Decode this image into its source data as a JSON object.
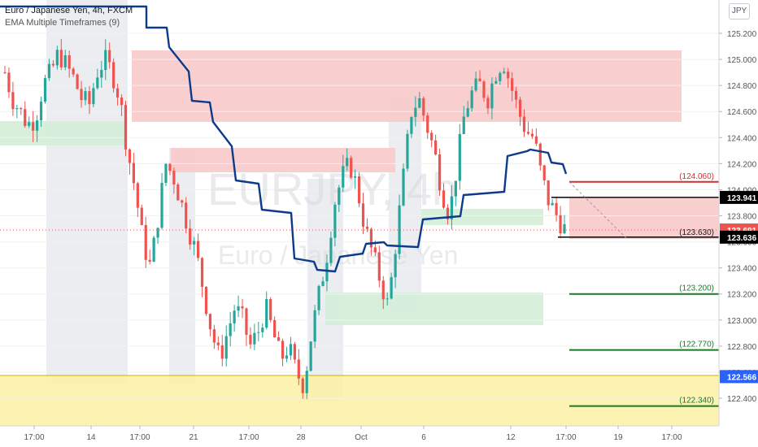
{
  "header": {
    "symbol_line": "Euro / Japanese Yen, 4h, FXCM",
    "indicator_line": "EMA Multiple Timeframes (9)",
    "currency_button": "JPY"
  },
  "watermark": {
    "symbol": "EURJPY, 4h",
    "name": "Euro / Japanese Yen"
  },
  "colors": {
    "up": "#26a69a",
    "down": "#ef5350",
    "ema": "#0d3b8c",
    "red_zone": "#f8c9c9",
    "green_zone": "#d4edd8",
    "gray_zone": "#e4e5ea",
    "yellow_zone": "#fcf1a8",
    "accent": "#2962ff",
    "target_red": "#d32f2f",
    "target_green": "#1b7a2a"
  },
  "chart_data": {
    "type": "candlestick",
    "ylim": [
      122.2,
      125.25
    ],
    "price_ticks": [
      "125.200",
      "125.000",
      "124.800",
      "124.600",
      "124.400",
      "124.200",
      "124.000",
      "123.800",
      "123.600",
      "123.400",
      "123.200",
      "123.000",
      "122.800",
      "122.600",
      "122.400"
    ],
    "time_ticks": [
      "17:00",
      "14",
      "17:00",
      "21",
      "17:00",
      "28",
      "Oct",
      "6",
      "12",
      "17:00",
      "19",
      "17:00"
    ],
    "price_badges": [
      {
        "label": "123.941",
        "price": 123.941,
        "style": "black"
      },
      {
        "label": "123.691",
        "price": 123.691,
        "style": "red"
      },
      {
        "label": "123.636",
        "price": 123.636,
        "style": "black"
      },
      {
        "label": "122.566",
        "price": 122.566,
        "style": "blue"
      }
    ],
    "level_labels": [
      {
        "label": "(124.060)",
        "price": 124.06,
        "kind": "red"
      },
      {
        "label": "(123.630)",
        "price": 123.63,
        "kind": "dark"
      },
      {
        "label": "(123.200)",
        "price": 123.2,
        "kind": "green"
      },
      {
        "label": "(122.770)",
        "price": 122.77,
        "kind": "green"
      },
      {
        "label": "(122.340)",
        "price": 122.34,
        "kind": "green"
      }
    ],
    "ema_path": [
      [
        124.25,
        125.25
      ],
      [
        124.5,
        124.5
      ],
      [
        125.0,
        125.0
      ]
    ],
    "series": [
      {
        "name": "EUR/JPY",
        "values": [
          124.9,
          124.7,
          124.6,
          124.5,
          124.55,
          124.8,
          124.9,
          125.05,
          124.95,
          124.85,
          124.7,
          124.65,
          124.9,
          125.0,
          124.9,
          124.7,
          124.3,
          124.0,
          123.6,
          123.4,
          123.8,
          124.2,
          124.1,
          123.9,
          123.7,
          123.5,
          123.2,
          122.9,
          122.7,
          122.9,
          123.1,
          123.0,
          122.8,
          122.9,
          123.1,
          122.9,
          122.7,
          122.8,
          122.6,
          122.5,
          122.9,
          123.2,
          123.5,
          123.9,
          124.1,
          124.2,
          124.0,
          123.7,
          123.5,
          123.3,
          123.1,
          123.6,
          124.1,
          124.6,
          124.7,
          124.5,
          124.3,
          124.0,
          123.8,
          124.2,
          124.6,
          124.75,
          124.8,
          124.7,
          124.9,
          125.0,
          124.8,
          124.6,
          124.45,
          124.4,
          124.1,
          123.9,
          123.8,
          123.7
        ]
      }
    ]
  }
}
